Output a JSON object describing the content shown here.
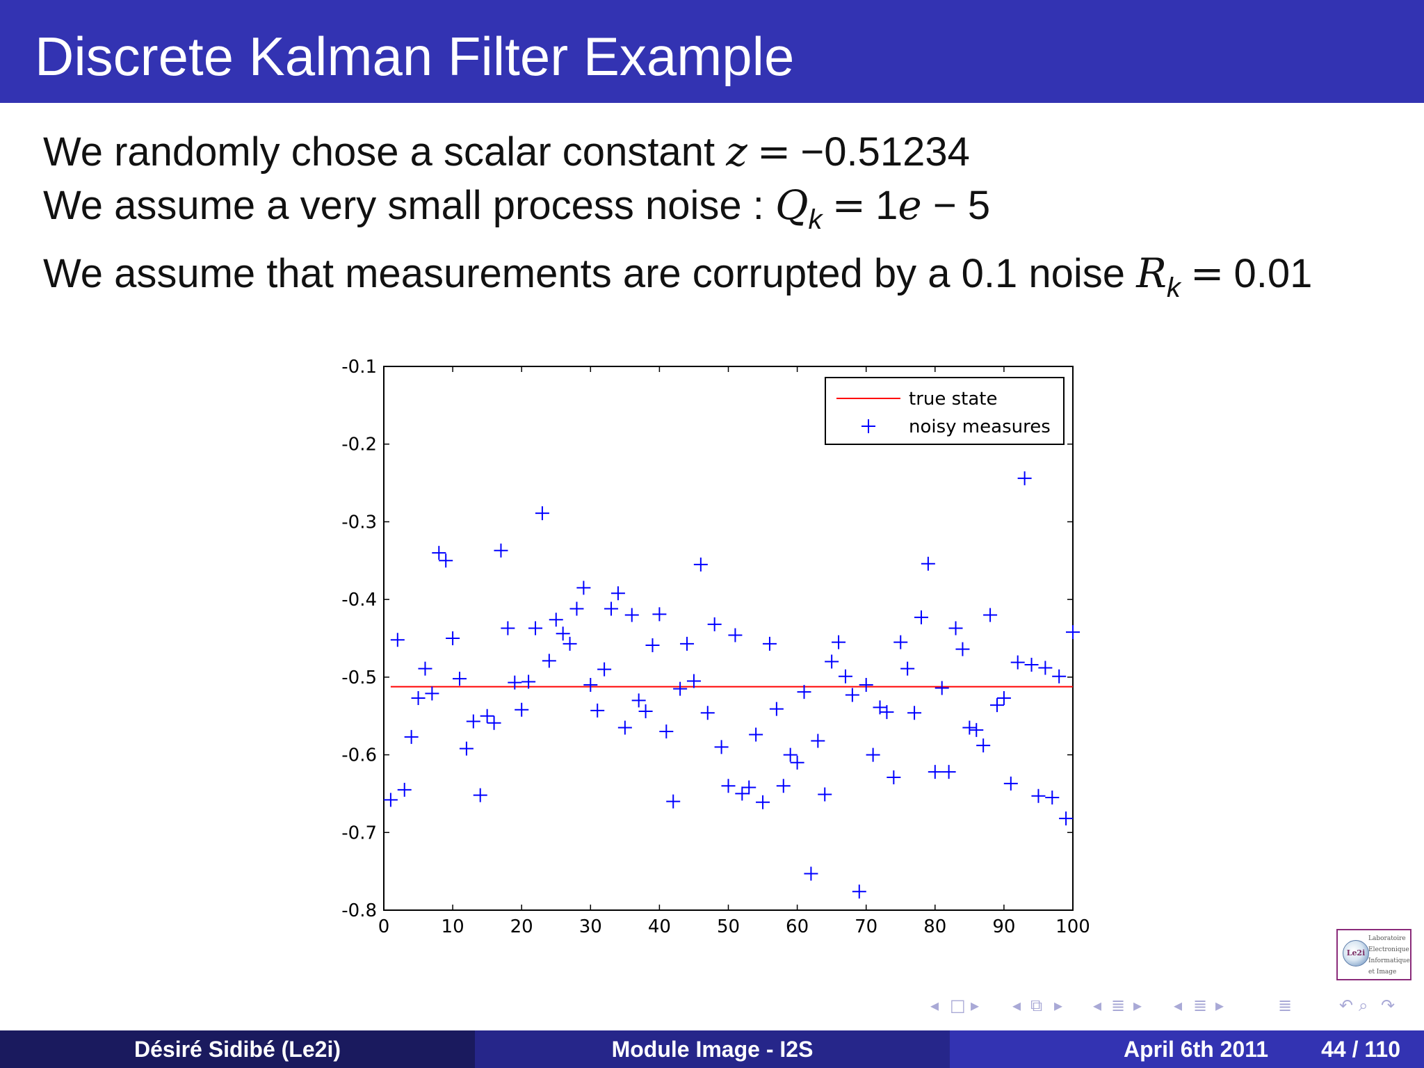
{
  "header": {
    "title": "Discrete Kalman Filter Example"
  },
  "content": {
    "line1": {
      "text": "We randomly chose a scalar constant ",
      "var": "z",
      "op": "=",
      "value": "−0.51234"
    },
    "line2": {
      "text": "We assume a very small process noise : ",
      "var": "Q",
      "sub": "k",
      "op": "=",
      "value_num": "1",
      "value_e": "e",
      "value_rest": " − 5"
    },
    "line3": {
      "text": "We assume that measurements are corrupted by a 0.1 noise ",
      "var": "R",
      "sub": "k",
      "op": "=",
      "value": "0.01"
    }
  },
  "chart_data": {
    "type": "scatter",
    "title": "",
    "xlabel": "",
    "ylabel": "",
    "xlim": [
      0,
      100
    ],
    "ylim": [
      -0.8,
      -0.1
    ],
    "xticks": [
      "0",
      "10",
      "20",
      "30",
      "40",
      "50",
      "60",
      "70",
      "80",
      "90",
      "100"
    ],
    "yticks": [
      "-0.1",
      "-0.2",
      "-0.3",
      "-0.4",
      "-0.5",
      "-0.6",
      "-0.7",
      "-0.8"
    ],
    "grid": false,
    "legend_position": "top-right",
    "series": [
      {
        "name": "true state",
        "kind": "line",
        "color": "#ff0000",
        "x": [
          1,
          100
        ],
        "y": [
          -0.5123,
          -0.5123
        ]
      },
      {
        "name": "noisy measures",
        "kind": "marker",
        "marker": "+",
        "color": "#0000ff",
        "x": [
          1,
          2,
          3,
          4,
          5,
          6,
          7,
          8,
          9,
          10,
          11,
          12,
          13,
          14,
          15,
          16,
          17,
          18,
          19,
          20,
          21,
          22,
          23,
          24,
          25,
          26,
          27,
          28,
          29,
          30,
          31,
          32,
          33,
          34,
          35,
          36,
          37,
          38,
          39,
          40,
          41,
          42,
          43,
          44,
          45,
          46,
          47,
          48,
          49,
          50,
          51,
          52,
          53,
          54,
          55,
          56,
          57,
          58,
          59,
          60,
          61,
          62,
          63,
          64,
          65,
          66,
          67,
          68,
          69,
          70,
          71,
          72,
          73,
          74,
          75,
          76,
          77,
          78,
          79,
          80,
          81,
          82,
          83,
          84,
          85,
          86,
          87,
          88,
          89,
          90,
          91,
          92,
          93,
          94,
          95,
          96,
          97,
          98,
          99,
          100
        ],
        "y": [
          -0.658,
          -0.452,
          -0.645,
          -0.577,
          -0.527,
          -0.489,
          -0.521,
          -0.34,
          -0.35,
          -0.45,
          -0.502,
          -0.592,
          -0.557,
          -0.652,
          -0.55,
          -0.559,
          -0.337,
          -0.437,
          -0.507,
          -0.542,
          -0.506,
          -0.437,
          -0.289,
          -0.479,
          -0.426,
          -0.444,
          -0.457,
          -0.412,
          -0.385,
          -0.51,
          -0.543,
          -0.49,
          -0.412,
          -0.392,
          -0.565,
          -0.42,
          -0.53,
          -0.544,
          -0.459,
          -0.419,
          -0.57,
          -0.66,
          -0.515,
          -0.457,
          -0.505,
          -0.355,
          -0.546,
          -0.432,
          -0.59,
          -0.64,
          -0.446,
          -0.65,
          -0.642,
          -0.574,
          -0.661,
          -0.457,
          -0.541,
          -0.64,
          -0.6,
          -0.61,
          -0.519,
          -0.753,
          -0.582,
          -0.651,
          -0.48,
          -0.455,
          -0.499,
          -0.523,
          -0.776,
          -0.51,
          -0.6,
          -0.539,
          -0.545,
          -0.629,
          -0.455,
          -0.489,
          -0.546,
          -0.423,
          -0.354,
          -0.622,
          -0.514,
          -0.622,
          -0.437,
          -0.464,
          -0.565,
          -0.568,
          -0.588,
          -0.42,
          -0.536,
          -0.527,
          -0.637,
          -0.481,
          -0.244,
          -0.484,
          -0.653,
          -0.488,
          -0.655,
          -0.499,
          -0.682,
          -0.442
        ]
      }
    ]
  },
  "logo": {
    "badge": "Le2i",
    "line1": "Laboratoire",
    "line2": "Electronique",
    "line3": "Informatique",
    "line4": "et Image"
  },
  "nav": {
    "first": "◂",
    "frame": "□",
    "next": "▸",
    "sec_left": "◂",
    "sec_icon": "⧉",
    "sec_right": "▸",
    "sub_left": "◂",
    "sub_icon": "≣",
    "sub_right": "▸",
    "sub2_left": "◂",
    "sub2_icon": "≣",
    "sub2_right": "▸",
    "toc": "≣",
    "back": "↶",
    "search": "⌕",
    "forward": "↷"
  },
  "footer": {
    "author": "Désiré Sidibé  (Le2i)",
    "course": "Module Image - I2S",
    "date": "April 6th 2011",
    "page": "44 / 110"
  }
}
